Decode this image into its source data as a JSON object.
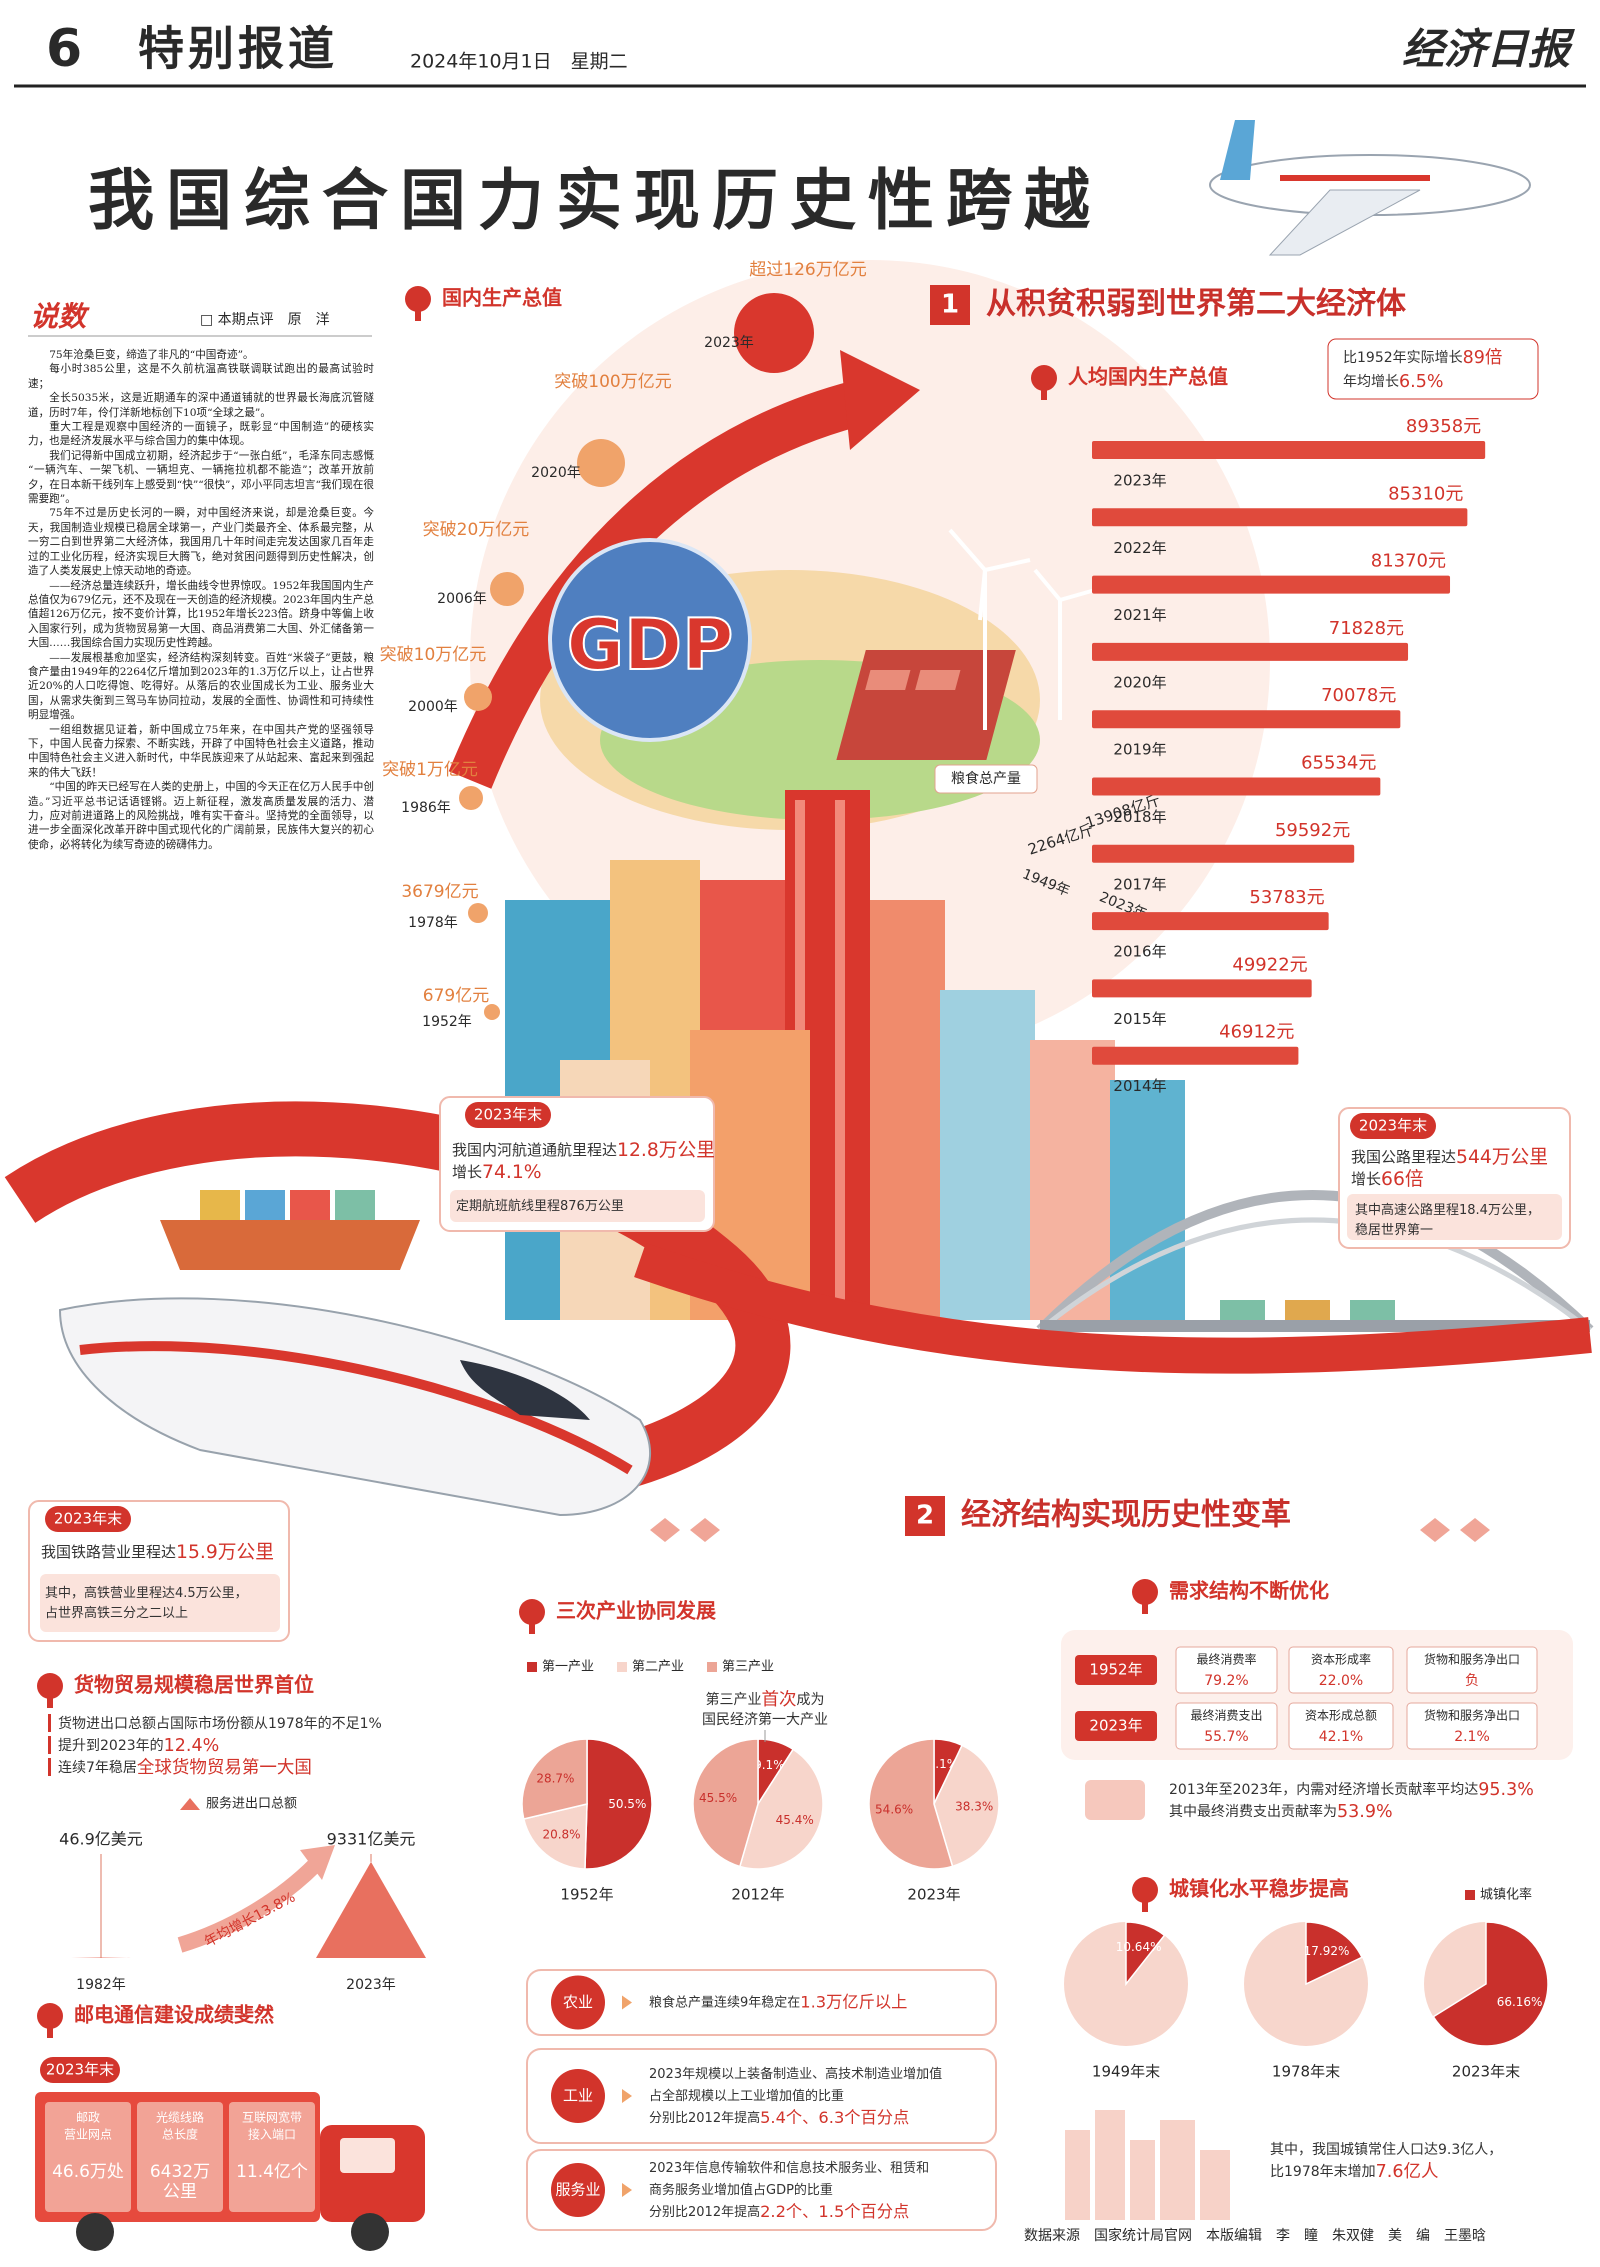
{
  "header": {
    "page_number": "6",
    "section": "特别报道",
    "date": "2024年10月1日　星期二",
    "masthead": "经济日报"
  },
  "title": "我国综合国力实现历史性跨越",
  "commentary": {
    "label": "说数",
    "byline": "□ 本期点评　原　洋",
    "paragraphs": [
      "75年沧桑巨变，缔造了非凡的“中国奇迹”。",
      "每小时385公里，这是不久前杭温高铁联调联试跑出的最高试验时速；",
      "全长5035米，这是近期通车的深中通道铺就的世界最长海底沉管隧道，历时7年，伶仃洋新地标创下10项“全球之最”。",
      "重大工程是观察中国经济的一面镜子，既彰显“中国制造”的硬核实力，也是经济发展水平与综合国力的集中体现。",
      "我们记得新中国成立初期，经济起步于“一张白纸”，毛泽东同志感慨“一辆汽车、一架飞机、一辆坦克、一辆拖拉机都不能造”；改革开放前夕，在日本新干线列车上感受到“快”“很快”，邓小平同志坦言“我们现在很需要跑”。",
      "75年不过是历史长河的一瞬，对中国经济来说，却是沧桑巨变。今天，我国制造业规模已稳居全球第一，产业门类最齐全、体系最完整，从一穷二白到世界第二大经济体，我国用几十年时间走完发达国家几百年走过的工业化历程，经济实现巨大腾飞，绝对贫困问题得到历史性解决，创造了人类发展史上惊天动地的奇迹。",
      "——经济总量连续跃升，增长曲线令世界惊叹。1952年我国国内生产总值仅为679亿元，还不及现在一天创造的经济规模。2023年国内生产总值超126万亿元，按不变价计算，比1952年增长223倍。跻身中等偏上收入国家行列，成为货物贸易第一大国、商品消费第二大国、外汇储备第一大国……我国综合国力实现历史性跨越。",
      "——发展根基愈加坚实，经济结构深刻转变。百姓“米袋子”更鼓，粮食产量由1949年的2264亿斤增加到2023年的1.3万亿斤以上，让占世界近20%的人口吃得饱、吃得好。从落后的农业国成长为工业、服务业大国，从需求失衡到三驾马车协同拉动，发展的全面性、协调性和可持续性明显增强。",
      "一组组数据见证着，新中国成立75年来，在中国共产党的坚强领导下，中国人民奋力探索、不断实践，开辟了中国特色社会主义道路，推动中国特色社会主义进入新时代，中华民族迎来了从站起来、富起来到强起来的伟大飞跃！",
      "“中国的昨天已经写在人类的史册上，中国的今天正在亿万人民手中创造。”习近平总书记话语铿锵。迈上新征程，激发高质量发展的活力、潜力，应对前进道路上的风险挑战，唯有实干奋斗。坚持党的全面领导，以进一步全面深化改革开辟中国式现代化的广阔前景，民族伟大复兴的初心使命，必将转化为续写奇迹的磅礴伟力。"
    ]
  },
  "gdp": {
    "heading": "国内生产总值",
    "badge": "GDP",
    "milestones": [
      {
        "year": "1952年",
        "label": "679亿元"
      },
      {
        "year": "1978年",
        "label": "3679亿元"
      },
      {
        "year": "1986年",
        "label": "突破1万亿元"
      },
      {
        "year": "2000年",
        "label": "突破10万亿元"
      },
      {
        "year": "2006年",
        "label": "突破20万亿元"
      },
      {
        "year": "2020年",
        "label": "突破100万亿元"
      },
      {
        "year": "2023年",
        "label": "超过126万亿元"
      }
    ]
  },
  "grain": {
    "label": "粮食总产量",
    "points": [
      {
        "year": "1949年",
        "label": "2264亿斤"
      },
      {
        "year": "2023年",
        "label": "13908亿斤"
      }
    ]
  },
  "section1": {
    "number": "1",
    "heading": "从积贫积弱到世界第二大经济体"
  },
  "waterway": {
    "tag": "2023年末",
    "lines": [
      [
        "我国内河航道通航里程达",
        "12.8万公里"
      ],
      [
        "增长",
        "74.1%"
      ]
    ],
    "sub": [
      [
        "定期航班航线里程876万公里"
      ]
    ]
  },
  "highway": {
    "tag": "2023年末",
    "lines": [
      [
        "我国公路里程达",
        "544万公里"
      ],
      [
        "增长",
        "66倍"
      ]
    ],
    "sub": [
      [
        "其中高速公路里程18.4万公里，"
      ],
      [
        "稳居世界第一"
      ]
    ]
  },
  "railway": {
    "tag": "2023年末",
    "lines": [
      [
        "我国铁路营业里程达",
        "15.9万公里"
      ]
    ],
    "sub": [
      [
        "其中，高铁营业里程达4.5万公里，"
      ],
      [
        "占世界高铁三分之二以上"
      ]
    ]
  },
  "section2": {
    "number": "2",
    "heading": "经济结构实现历史性变革"
  },
  "trade": {
    "heading": "货物贸易规模稳居世界首位",
    "lines": [
      [
        "货物进出口总额占国际市场份额从1978年的不足1%"
      ],
      [
        "提升到2023年的",
        "12.4%"
      ],
      [
        "连续7年稳居",
        "全球货物贸易第一大国"
      ]
    ]
  },
  "postal": {
    "heading": "邮电通信建设成绩斐然",
    "tag": "2023年末",
    "items": [
      {
        "label": [
          "邮政",
          "营业网点"
        ],
        "value": [
          "46.6万处"
        ]
      },
      {
        "label": [
          "光缆线路",
          "总长度"
        ],
        "value": [
          "6432万",
          "公里"
        ]
      },
      {
        "label": [
          "互联网宽带",
          "接入端口"
        ],
        "value": [
          "11.4亿个"
        ]
      }
    ]
  },
  "sectors": [
    {
      "name": "农业",
      "lines": [
        [
          "粮食总产量连续9年稳定在",
          "1.3万亿斤以上"
        ]
      ]
    },
    {
      "name": "工业",
      "lines": [
        [
          "2023年规模以上装备制造业、高技术制造业增加值"
        ],
        [
          "占全部规模以上工业增加值的比重"
        ],
        [
          "分别比2012年提高",
          "5.4个、6.3个百分点"
        ]
      ]
    },
    {
      "name": "服务业",
      "lines": [
        [
          "2023年信息传输软件和信息技术服务业、租赁和"
        ],
        [
          "商务服务业增加值占GDP的比重"
        ],
        [
          "分别比2012年提高",
          "2.2个、1.5个百分点"
        ]
      ]
    }
  ],
  "demand": {
    "heading": "需求结构不断优化",
    "rows": [
      {
        "year": "1952年",
        "cells": [
          {
            "label": "最终消费率",
            "value": "79.2%"
          },
          {
            "label": "资本形成率",
            "value": "22.0%"
          },
          {
            "label": "货物和服务净出口",
            "value": "负"
          }
        ]
      },
      {
        "year": "2023年",
        "cells": [
          {
            "label": "最终消费支出",
            "value": "55.7%"
          },
          {
            "label": "资本形成总额",
            "value": "42.1%"
          },
          {
            "label": "货物和服务净出口",
            "value": "2.1%"
          }
        ]
      }
    ],
    "note": [
      [
        "2013年至2023年，内需对经济增长贡献率平均达",
        "95.3%"
      ],
      [
        "其中最终消费支出贡献率为",
        "53.9%"
      ]
    ]
  },
  "urban_note": [
    [
      "其中，我国城镇常住人口达9.3亿人，"
    ],
    [
      "比1978年末增加",
      "7.6亿人"
    ]
  ],
  "footer": "数据来源　国家统计局官网　本版编辑　李　瞳　朱双健　美　编　王墨晗",
  "chart_data": [
    {
      "type": "bar",
      "orientation": "horizontal",
      "title": "人均国内生产总值",
      "note": [
        [
          "比1952年实际增长",
          "89倍"
        ],
        [
          "年均增长",
          "6.5%"
        ]
      ],
      "categories": [
        "2023年",
        "2022年",
        "2021年",
        "2020年",
        "2019年",
        "2018年",
        "2017年",
        "2016年",
        "2015年",
        "2014年"
      ],
      "values": [
        89358,
        85310,
        81370,
        71828,
        70078,
        65534,
        59592,
        53783,
        49922,
        46912
      ],
      "value_labels": [
        "89358元",
        "85310元",
        "81370元",
        "71828元",
        "70078元",
        "65534元",
        "59592元",
        "53783元",
        "49922元",
        "46912元"
      ],
      "color": "#e04a3c"
    },
    {
      "type": "pie",
      "title": "三次产业协同发展",
      "annotation": [
        [
          "第三产业",
          "首次",
          "成为"
        ],
        [
          "国民经济第一大产业"
        ]
      ],
      "categories": [
        "1952年",
        "2012年",
        "2023年"
      ],
      "series": [
        {
          "name": "第一产业",
          "color": "#c9302c",
          "values": [
            50.5,
            9.1,
            7.1
          ],
          "value_labels": [
            "50.5%",
            "9.1%",
            "7.1%"
          ]
        },
        {
          "name": "第二产业",
          "color": "#f7d5cb",
          "values": [
            20.8,
            45.4,
            38.3
          ],
          "value_labels": [
            "20.8%",
            "45.4%",
            "38.3%"
          ]
        },
        {
          "name": "第三产业",
          "color": "#eca596",
          "values": [
            28.7,
            45.5,
            54.6
          ],
          "value_labels": [
            "28.7%",
            "45.5%",
            "54.6%"
          ]
        }
      ]
    },
    {
      "type": "pie",
      "title": "城镇化水平稳步提高",
      "categories": [
        "1949年末",
        "1978年末",
        "2023年末"
      ],
      "series": [
        {
          "name": "城镇化率",
          "color": "#c9302c",
          "values": [
            10.64,
            17.92,
            66.16
          ],
          "value_labels": [
            "10.64%",
            "17.92%",
            "66.16%"
          ]
        }
      ]
    },
    {
      "type": "triangle",
      "annotation": "年均增长13.8%",
      "categories": [
        "1982年",
        "2023年"
      ],
      "series": [
        {
          "name": "服务进出口总额",
          "color": "#e8705f",
          "values": [
            46.9,
            9331
          ],
          "value_labels": [
            "46.9亿美元",
            "9331亿美元"
          ]
        }
      ]
    }
  ]
}
